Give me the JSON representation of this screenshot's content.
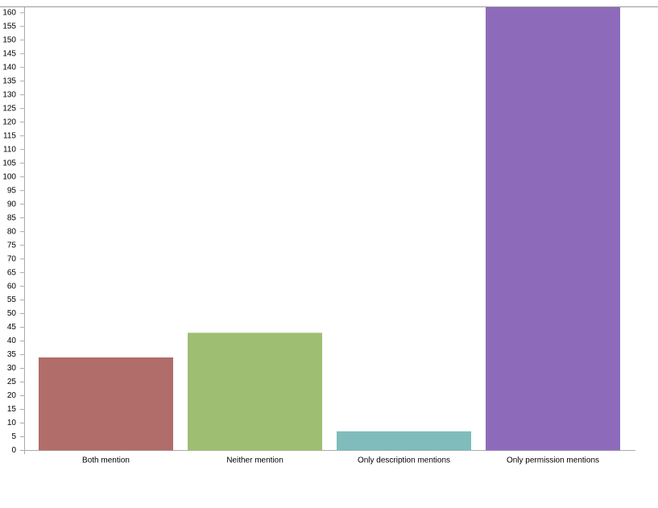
{
  "chart_data": {
    "type": "bar",
    "categories": [
      "Both mention",
      "Neither mention",
      "Only description mentions",
      "Only permission mentions"
    ],
    "values": [
      34,
      43,
      7,
      162
    ],
    "colors": [
      "#b06d6a",
      "#9ebe72",
      "#7fbcbb",
      "#8e6bba"
    ],
    "ylim": [
      0,
      162
    ],
    "yticks": [
      0,
      5,
      10,
      15,
      20,
      25,
      30,
      35,
      40,
      45,
      50,
      55,
      60,
      65,
      70,
      75,
      80,
      85,
      90,
      95,
      100,
      105,
      110,
      115,
      120,
      125,
      130,
      135,
      140,
      145,
      150,
      155,
      160
    ],
    "grid": false
  }
}
